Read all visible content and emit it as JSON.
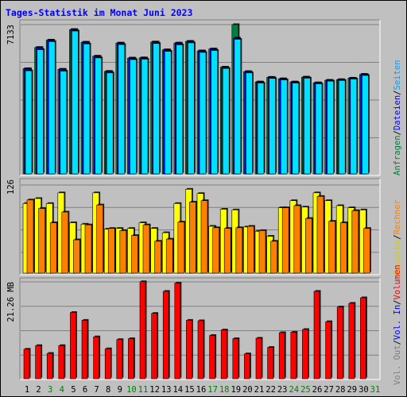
{
  "chart_data": {
    "type": "bar",
    "title": "Tages-Statistik im Monat Juni 2023",
    "days": [
      "1",
      "2",
      "3",
      "4",
      "5",
      "6",
      "7",
      "8",
      "9",
      "10",
      "11",
      "12",
      "13",
      "14",
      "15",
      "16",
      "17",
      "18",
      "19",
      "20",
      "21",
      "22",
      "23",
      "24",
      "25",
      "26",
      "27",
      "28",
      "29",
      "30",
      "31"
    ],
    "weekend_days": [
      "3",
      "4",
      "10",
      "11",
      "17",
      "18",
      "24",
      "25",
      "31"
    ],
    "panels": {
      "top": {
        "ymax_label": "7133",
        "ymax": 7133,
        "series": [
          {
            "name": "Anfragen",
            "color": "#008040",
            "values": [
              5050,
              6050,
              6400,
              5020,
              6900,
              6300,
              5640,
              4920,
              6260,
              5550,
              5560,
              6310,
              5940,
              6260,
              6340,
              5890,
              5980,
              5120,
              7133,
              4910,
              4420,
              4640,
              4570,
              4420,
              4650,
              4380,
              4500,
              4530,
              4600,
              4780,
              null
            ]
          },
          {
            "name": "Dateien",
            "color": "#0000ff",
            "values": [
              5050,
              6050,
              6400,
              5020,
              6900,
              6300,
              5640,
              4920,
              6260,
              5550,
              5560,
              6310,
              5940,
              6260,
              6340,
              5890,
              5980,
              5120,
              6500,
              4910,
              4420,
              4640,
              4570,
              4420,
              4650,
              4380,
              4500,
              4530,
              4600,
              4780,
              null
            ]
          },
          {
            "name": "Seiten",
            "color": "#00e0ff",
            "values": [
              4950,
              5950,
              6330,
              4930,
              6830,
              6220,
              5560,
              4850,
              6190,
              5480,
              5500,
              6240,
              5870,
              6180,
              6270,
              5820,
              5910,
              5060,
              6440,
              4850,
              4370,
              4590,
              4520,
              4370,
              4600,
              4330,
              4460,
              4490,
              4560,
              4730,
              null
            ]
          }
        ]
      },
      "middle": {
        "ymax_label": "126",
        "ymax": 126,
        "series": [
          {
            "name": "Besuche",
            "color": "#ffff00",
            "values": [
              100,
              107,
              100,
              115,
              73,
              71,
              115,
              64,
              65,
              65,
              73,
              65,
              59,
              100,
              120,
              114,
              68,
              92,
              91,
              67,
              61,
              54,
              94,
              104,
              95,
              115,
              104,
              97,
              94,
              91,
              null
            ]
          },
          {
            "name": "Rechner",
            "color": "#ff8000",
            "values": [
              105,
              93,
              73,
              88,
              49,
              70,
              98,
              65,
              62,
              55,
              70,
              47,
              50,
              74,
              102,
              104,
              66,
              65,
              66,
              68,
              62,
              47,
              94,
              97,
              79,
              110,
              75,
              73,
              90,
              65,
              null
            ]
          }
        ]
      },
      "bottom": {
        "ymax_label": "21.26 MB",
        "ymax": 21.26,
        "series": [
          {
            "name": "Vol. Out",
            "color": "#808080",
            "values": []
          },
          {
            "name": "Vol. In",
            "color": "#0000ff",
            "values": []
          },
          {
            "name": "Volumen",
            "color": "#ff0000",
            "values": [
              6.6,
              7.4,
              5.7,
              7.4,
              14.6,
              12.9,
              9.3,
              6.7,
              8.7,
              8.9,
              21.3,
              14.4,
              19.2,
              21.0,
              12.9,
              12.8,
              9.6,
              10.8,
              8.9,
              5.6,
              9.0,
              7.0,
              10.2,
              10.3,
              10.9,
              19.2,
              12.6,
              15.8,
              16.6,
              17.8,
              null
            ]
          }
        ]
      }
    },
    "right_legend_groups": [
      [
        {
          "text": "Anfragen",
          "color": "#008040"
        },
        {
          "text": "/",
          "color": "#000000"
        },
        {
          "text": "Dateien",
          "color": "#0000ff"
        },
        {
          "text": "/",
          "color": "#000000"
        },
        {
          "text": "Seiten",
          "color": "#00a0ff"
        }
      ],
      [
        {
          "text": "Besuche",
          "color": "#d0d000"
        },
        {
          "text": "/",
          "color": "#000000"
        },
        {
          "text": "Rechner",
          "color": "#ff8000"
        }
      ],
      [
        {
          "text": "Vol. Out",
          "color": "#808080"
        },
        {
          "text": "/",
          "color": "#000000"
        },
        {
          "text": "Vol. In",
          "color": "#0000ff"
        },
        {
          "text": "/",
          "color": "#000000"
        },
        {
          "text": "Volumen",
          "color": "#ff0000"
        }
      ]
    ],
    "colors": {
      "background": "#c0c0c0",
      "title": "#0000ff",
      "weekday_label": "#000000",
      "weekend_label": "#008000"
    }
  }
}
